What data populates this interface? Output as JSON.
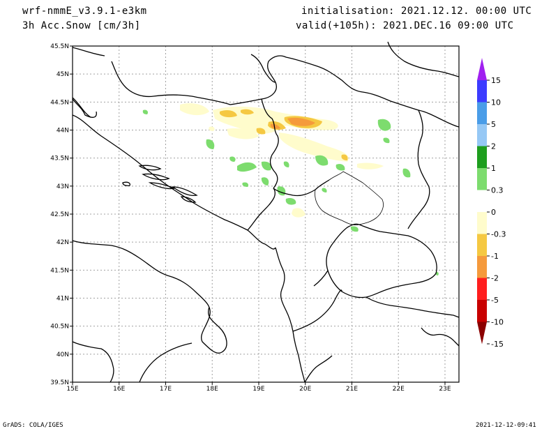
{
  "header": {
    "model": "wrf-nmmE_v3.9.1-e3km",
    "field": "3h Acc.Snow [cm/3h]",
    "init": "initialisation: 2021.12.12.  00:00 UTC",
    "valid": "valid(+105h): 2021.DEC.16 09:00 UTC"
  },
  "footer": {
    "credit": "GrADS: COLA/IGES",
    "timestamp": "2021-12-12-09:41"
  },
  "map": {
    "lon_ticks": [
      "15E",
      "16E",
      "17E",
      "18E",
      "19E",
      "20E",
      "21E",
      "22E",
      "23E"
    ],
    "lat_ticks": [
      "45.5N",
      "45N",
      "44.5N",
      "44N",
      "43.5N",
      "43N",
      "42.5N",
      "42N",
      "41.5N",
      "41N",
      "40.5N",
      "40N",
      "39.5N"
    ],
    "lon_range": [
      15,
      23.3
    ],
    "lat_range": [
      39.5,
      45.5
    ],
    "grid": true
  },
  "colorbar": {
    "labels": [
      "15",
      "10",
      "5",
      "2",
      "1",
      "0.3",
      "0",
      "-0.3",
      "-1",
      "-2",
      "-5",
      "-10",
      "-15"
    ],
    "colors": [
      "#a020f0",
      "#3c3cff",
      "#4a9de8",
      "#96c8f5",
      "#1e9e1e",
      "#7ddc6e",
      "#ffffff",
      "#fffccc",
      "#f5c842",
      "#f59a3c",
      "#ff1e1e",
      "#c80000",
      "#8b0000"
    ]
  },
  "colors": {
    "snow_light": "#fffccc",
    "snow_medium": "#f5c842",
    "snow_heavy": "#f59a3c",
    "melt_light": "#7ddc6e"
  }
}
